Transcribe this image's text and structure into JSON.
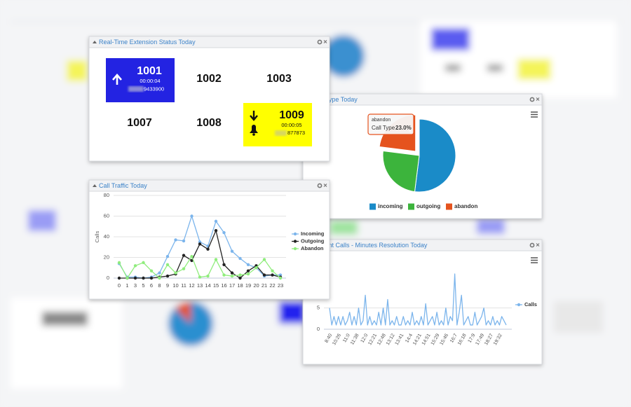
{
  "extension_panel": {
    "title": "Real-Time Extension Status Today",
    "extensions": [
      {
        "number": "1001",
        "duration": "00:00:04",
        "caller": "9433900"
      },
      {
        "number": "1002"
      },
      {
        "number": "1003"
      },
      {
        "number": "1007"
      },
      {
        "number": "1008"
      },
      {
        "number": "1009",
        "duration": "00:00:05",
        "caller": "877873"
      }
    ]
  },
  "chart_data": [
    {
      "type": "pie",
      "title": "Call Type Today",
      "series_name": "Call Type",
      "categories": [
        "incoming",
        "outgoing",
        "abandon"
      ],
      "values": [
        52,
        25,
        23
      ],
      "value_labels": [
        null,
        null,
        "23.0%"
      ],
      "colors": [
        "#1a8bc8",
        "#3cb43c",
        "#e5531e"
      ],
      "legend": "bottom"
    },
    {
      "type": "line",
      "title": "Call Traffic Today",
      "y_label": "Calls",
      "categories": [
        "0",
        "1",
        "3",
        "5",
        "6",
        "8",
        "9",
        "10",
        "11",
        "12",
        "13",
        "14",
        "15",
        "16",
        "17",
        "18",
        "19",
        "20",
        "21",
        "22",
        "23"
      ],
      "series": [
        {
          "name": "Incoming",
          "color": "#7cb5ec",
          "values": [
            14,
            1,
            1,
            0,
            1,
            5,
            21,
            37,
            36,
            60,
            35,
            31,
            55,
            44,
            26,
            19,
            13,
            10,
            2,
            3,
            3
          ]
        },
        {
          "name": "Outgoing",
          "color": "#222222",
          "values": [
            0,
            0,
            0,
            0,
            0,
            1,
            2,
            4,
            22,
            17,
            33,
            28,
            46,
            13,
            5,
            0,
            7,
            12,
            3,
            3,
            1
          ]
        },
        {
          "name": "Abandon",
          "color": "#90ed7d",
          "values": [
            15,
            0,
            12,
            15,
            7,
            0,
            13,
            5,
            9,
            21,
            1,
            2,
            18,
            3,
            2,
            3,
            4,
            10,
            18,
            7,
            0
          ]
        }
      ],
      "ylim": [
        0,
        80
      ],
      "yticks": [
        0,
        20,
        40,
        60,
        80
      ],
      "grid": true,
      "markers": true,
      "legend": "right"
    },
    {
      "type": "line",
      "title": "Current Calls - Minutes Resolution Today",
      "categories": [
        "8:40",
        null,
        null,
        null,
        "10:26",
        null,
        null,
        null,
        "11:0",
        null,
        null,
        null,
        "11:38",
        null,
        null,
        null,
        "12:0",
        null,
        null,
        null,
        "12:21",
        null,
        null,
        null,
        "12:48",
        null,
        null,
        null,
        "13:12",
        null,
        null,
        null,
        "13:41",
        null,
        null,
        null,
        "14:4",
        null,
        null,
        null,
        "14:21",
        null,
        null,
        null,
        "14:51",
        null,
        null,
        null,
        "15:29",
        null,
        null,
        null,
        "15:46",
        null,
        null,
        null,
        "16:7",
        null,
        null,
        null,
        "16:18",
        null,
        null,
        null,
        "17:9",
        null,
        null,
        null,
        "17:49",
        null,
        null,
        null,
        "18:27",
        null,
        null,
        null,
        "19:32",
        null,
        null,
        null
      ],
      "series": [
        {
          "name": "Calls",
          "color": "#7cb5ec",
          "values": [
            5,
            1,
            3,
            1,
            3,
            1,
            3,
            1,
            2,
            4,
            1,
            3,
            1,
            5,
            1,
            2,
            8,
            1,
            3,
            1,
            2,
            1,
            4,
            1,
            5,
            1,
            7,
            1,
            2,
            1,
            3,
            1,
            1,
            3,
            1,
            2,
            1,
            4,
            1,
            2,
            1,
            3,
            1,
            6,
            1,
            2,
            3,
            1,
            4,
            1,
            2,
            1,
            5,
            1,
            3,
            2,
            13,
            1,
            4,
            8,
            1,
            2,
            3,
            1,
            1,
            4,
            1,
            2,
            3,
            5,
            1,
            2,
            1,
            3,
            1,
            2,
            1,
            3,
            2,
            1
          ]
        }
      ],
      "ylim": [
        0,
        14
      ],
      "yticks": [
        0,
        5
      ],
      "grid": true,
      "markers": false,
      "legend": "right"
    }
  ]
}
